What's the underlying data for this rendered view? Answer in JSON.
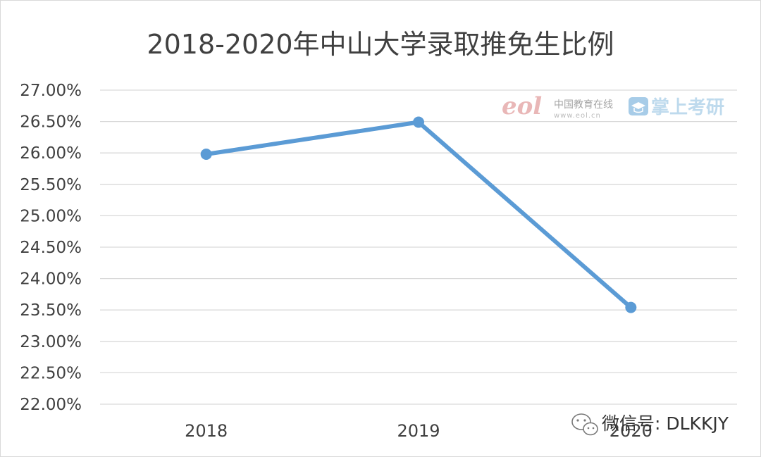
{
  "chart_data": {
    "type": "line",
    "title": "2018-2020年中山大学录取推免生比例",
    "xlabel": "",
    "ylabel": "",
    "categories": [
      "2018",
      "2019",
      "2020"
    ],
    "series": [
      {
        "values": [
          25.98,
          26.49,
          23.54
        ]
      }
    ],
    "ylim": [
      22.0,
      27.0
    ],
    "y_ticks": [
      "22.00%",
      "22.50%",
      "23.00%",
      "23.50%",
      "24.00%",
      "24.50%",
      "25.00%",
      "25.50%",
      "26.00%",
      "26.50%",
      "27.00%"
    ],
    "grid": true,
    "legend": "none",
    "line_color": "#5b9bd5",
    "grid_color": "#d9d9d9"
  },
  "watermark": {
    "eol_logo": "eol",
    "cn_text": "中国教育在线",
    "url_text": "www.eol.cn",
    "brand_text": "掌上考研",
    "brand_icon": "graduation-cap-icon",
    "wechat_icon": "wechat-icon",
    "wechat_text": "微信号: DLKKJY"
  }
}
